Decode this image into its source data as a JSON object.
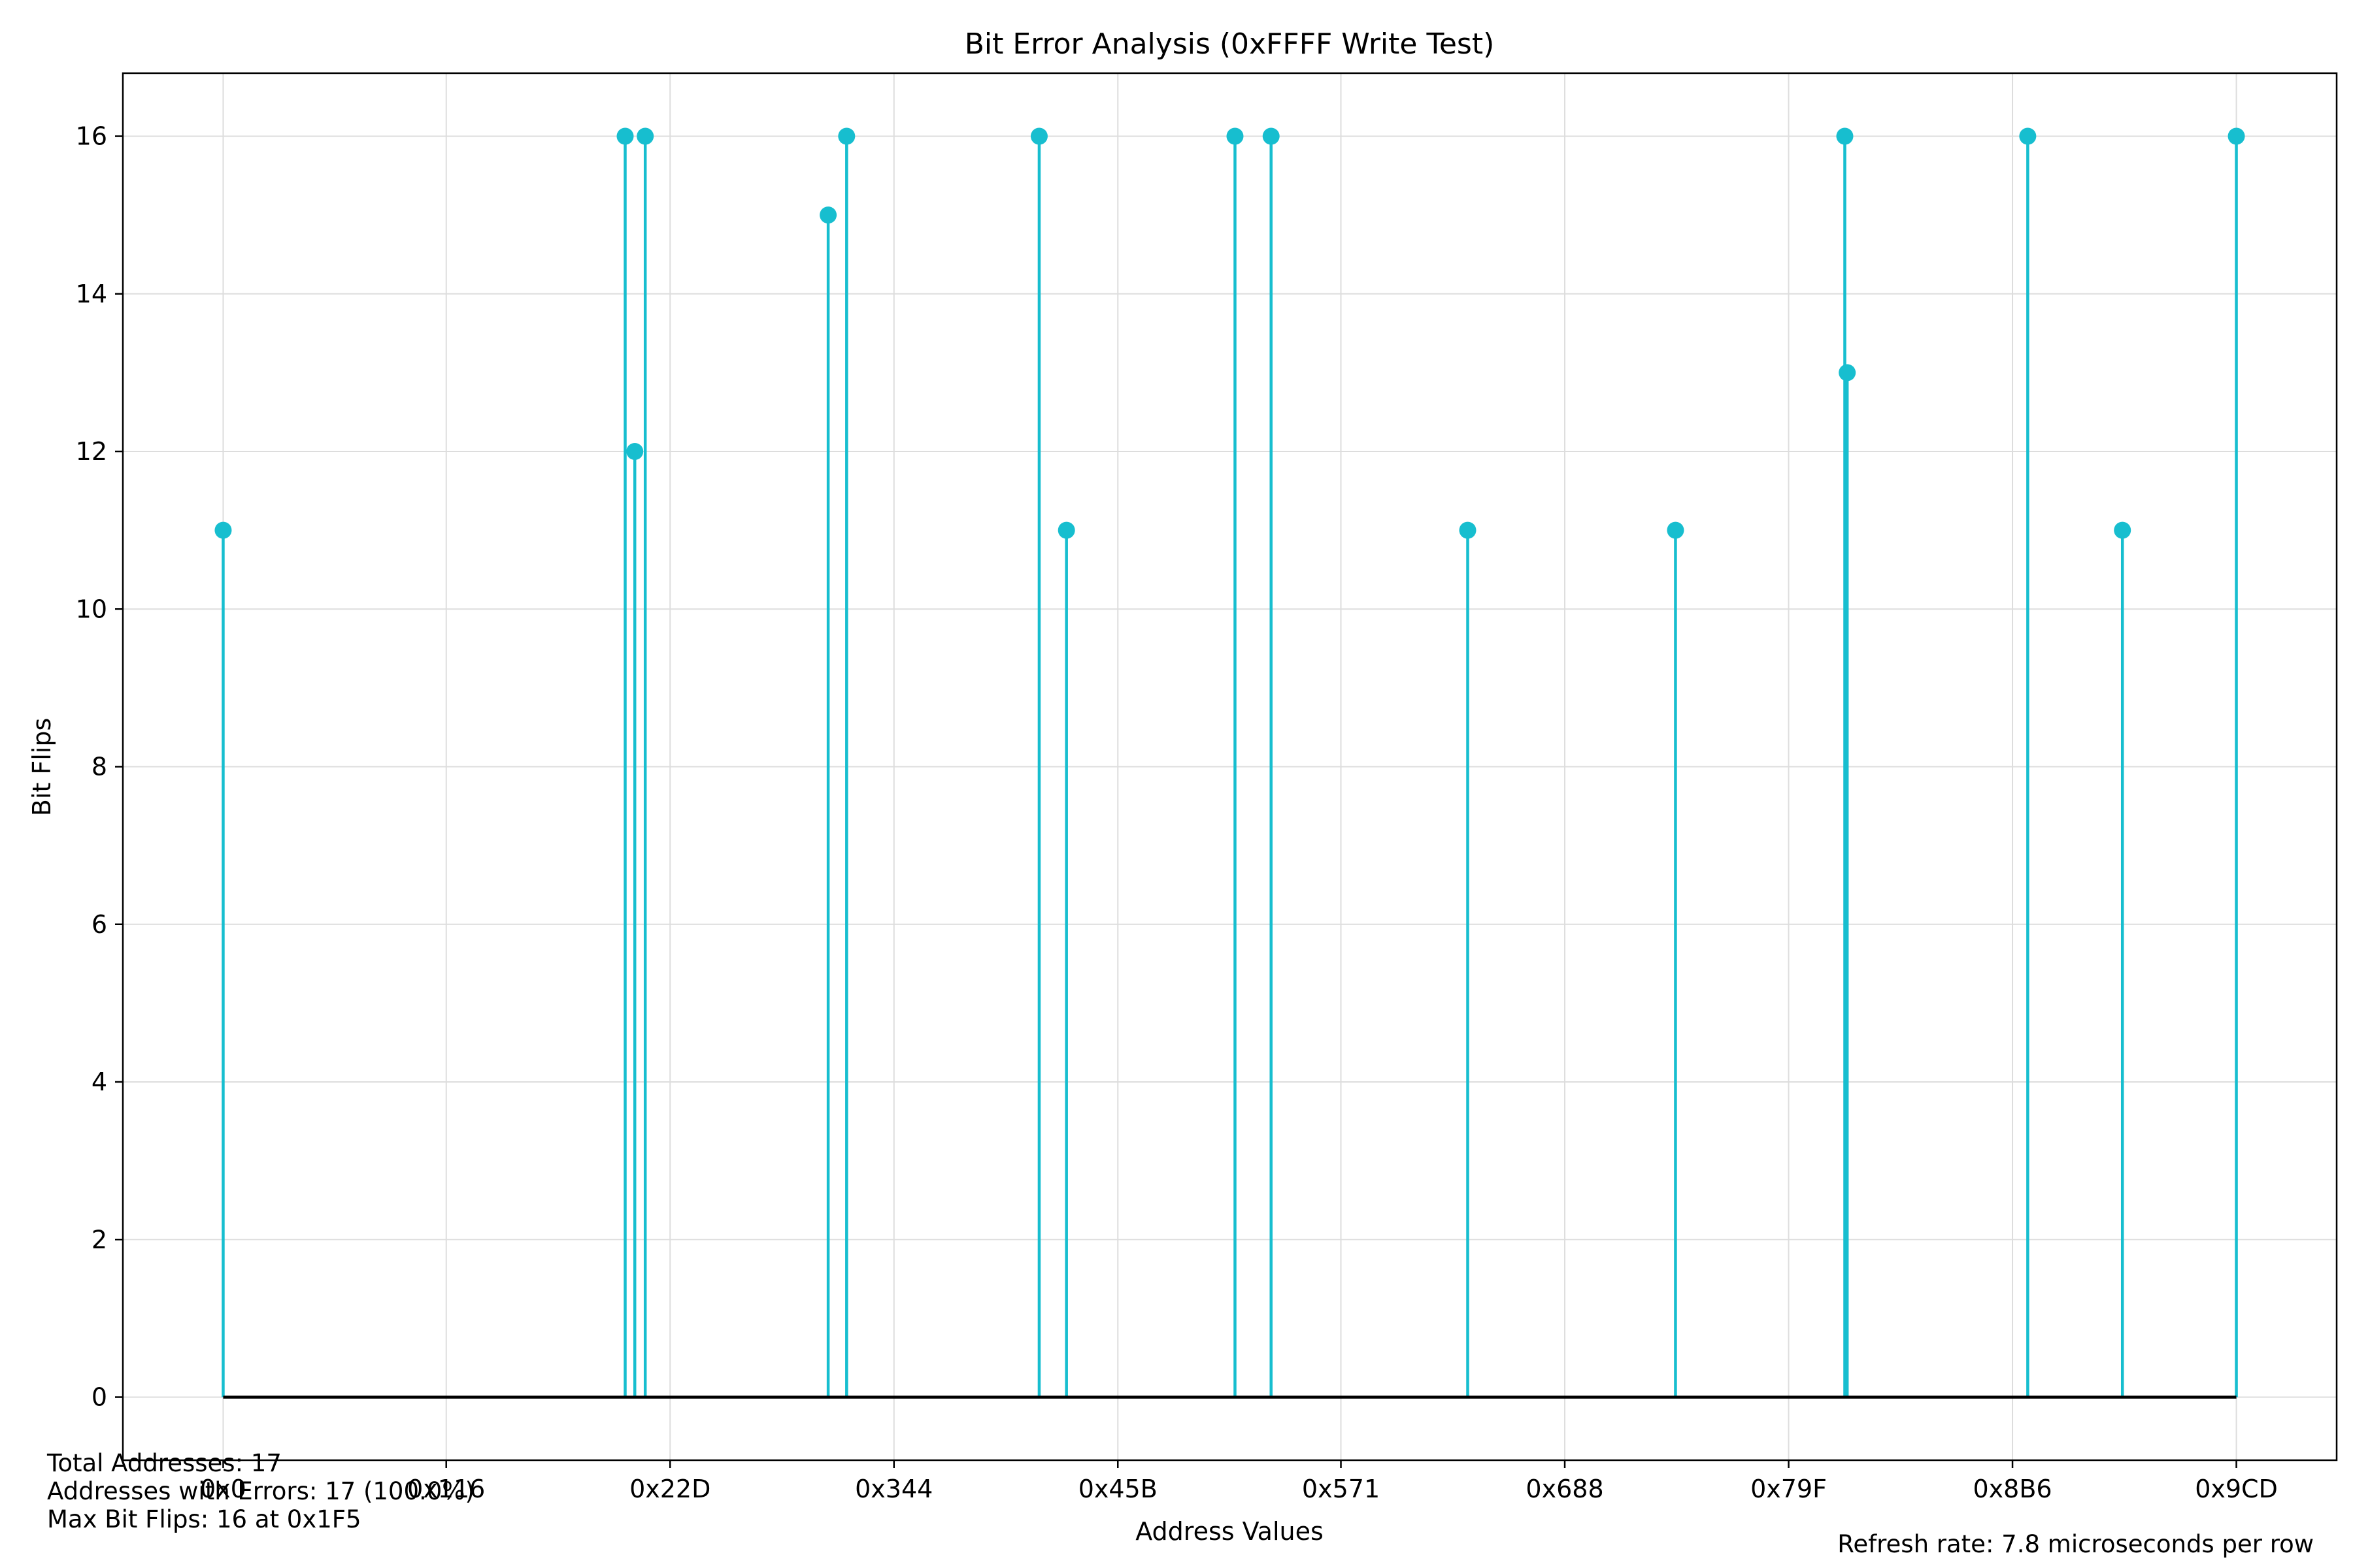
{
  "chart_data": {
    "type": "stem",
    "title": "Bit Error Analysis (0xFFFF Write Test)",
    "xlabel": "Address Values",
    "ylabel": "Bit Flips",
    "x_ticks": [
      {
        "value": 0,
        "label": "0x0"
      },
      {
        "value": 278,
        "label": "0x116"
      },
      {
        "value": 557,
        "label": "0x22D"
      },
      {
        "value": 836,
        "label": "0x344"
      },
      {
        "value": 1115,
        "label": "0x45B"
      },
      {
        "value": 1393,
        "label": "0x571"
      },
      {
        "value": 1672,
        "label": "0x688"
      },
      {
        "value": 1951,
        "label": "0x79F"
      },
      {
        "value": 2230,
        "label": "0x8B6"
      },
      {
        "value": 2509,
        "label": "0x9CD"
      }
    ],
    "y_ticks": [
      0,
      2,
      4,
      6,
      8,
      10,
      12,
      14,
      16
    ],
    "xlim": [
      -125,
      2634
    ],
    "ylim": [
      -0.8,
      16.8
    ],
    "grid": true,
    "color": "#17BECF",
    "baseline_color": "#000000",
    "points": [
      {
        "x": 0,
        "y": 11
      },
      {
        "x": 501,
        "y": 16
      },
      {
        "x": 513,
        "y": 12
      },
      {
        "x": 526,
        "y": 16
      },
      {
        "x": 754,
        "y": 15
      },
      {
        "x": 777,
        "y": 16
      },
      {
        "x": 1017,
        "y": 16
      },
      {
        "x": 1051,
        "y": 11
      },
      {
        "x": 1261,
        "y": 16
      },
      {
        "x": 1306,
        "y": 16
      },
      {
        "x": 1551,
        "y": 11
      },
      {
        "x": 1810,
        "y": 11
      },
      {
        "x": 2021,
        "y": 16
      },
      {
        "x": 2024,
        "y": 13
      },
      {
        "x": 2249,
        "y": 16
      },
      {
        "x": 2367,
        "y": 11
      },
      {
        "x": 2509,
        "y": 16
      }
    ]
  },
  "info": {
    "total_addresses": "Total Addresses: 17",
    "addresses_with_errors": "Addresses with Errors: 17 (100.0%)",
    "max_bit_flips": "Max Bit Flips: 16 at 0x1F5",
    "refresh_rate": "Refresh rate: 7.8 microseconds per row"
  }
}
